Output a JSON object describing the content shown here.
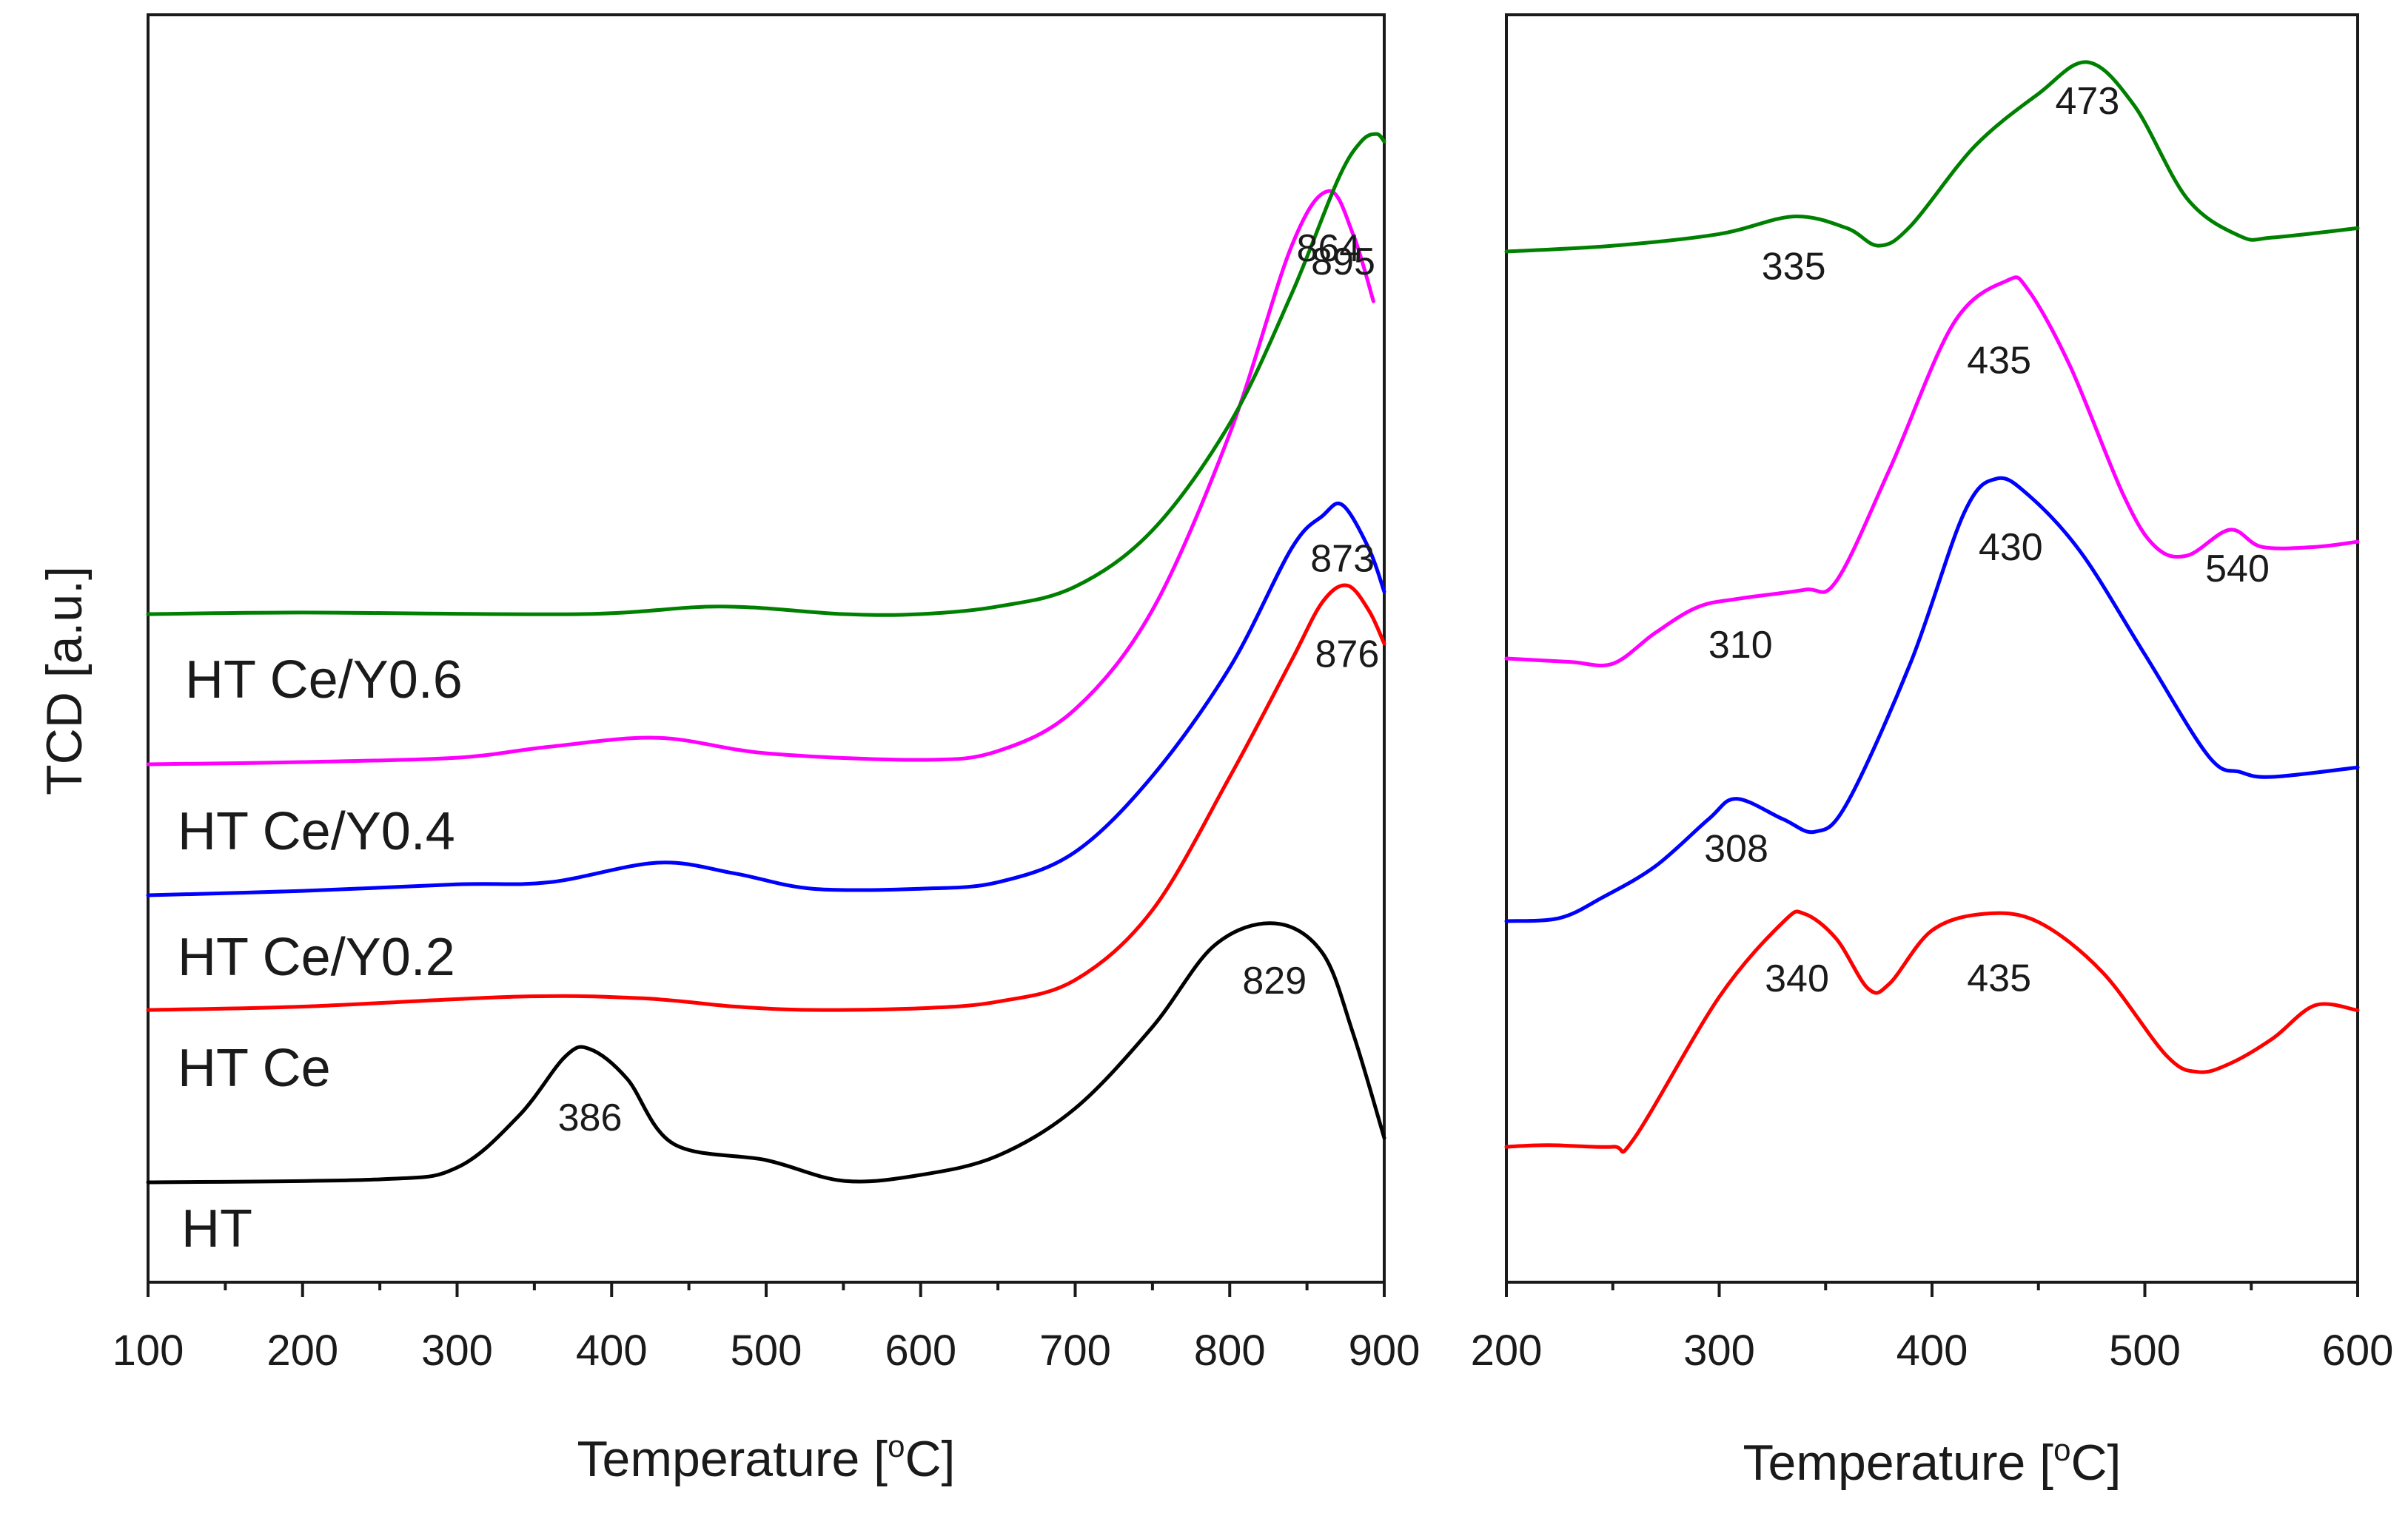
{
  "chart_data": [
    {
      "type": "line",
      "panel": "left",
      "ylabel": "TCD [a.u.]",
      "xlabel": "Temperature [",
      "xlabel_unit": "C]",
      "xlabel_superscript": "o",
      "xlim": [
        100,
        900
      ],
      "xticks": [
        "100",
        "200",
        "300",
        "400",
        "500",
        "600",
        "700",
        "800",
        "900"
      ],
      "y_units": "arbitrary (stacked offsets, not numeric)",
      "series": [
        {
          "name": "HT",
          "color": "#000000",
          "label": "HT",
          "points": [
            [
              100,
              0.0
            ],
            [
              250,
              0.02
            ],
            [
              300,
              0.1
            ],
            [
              340,
              0.45
            ],
            [
              370,
              0.85
            ],
            [
              386,
              0.9
            ],
            [
              410,
              0.7
            ],
            [
              440,
              0.26
            ],
            [
              500,
              0.15
            ],
            [
              550,
              0.01
            ],
            [
              600,
              0.05
            ],
            [
              650,
              0.18
            ],
            [
              700,
              0.5
            ],
            [
              750,
              1.05
            ],
            [
              790,
              1.6
            ],
            [
              829,
              1.75
            ],
            [
              860,
              1.55
            ],
            [
              880,
              1.0
            ],
            [
              900,
              0.3
            ]
          ]
        },
        {
          "name": "HT Ce",
          "color": "#ff0000",
          "label": "HT Ce",
          "points": [
            [
              100,
              0.0
            ],
            [
              200,
              0.02
            ],
            [
              340,
              0.08
            ],
            [
              420,
              0.07
            ],
            [
              480,
              0.02
            ],
            [
              530,
              0.0
            ],
            [
              600,
              0.01
            ],
            [
              650,
              0.05
            ],
            [
              700,
              0.18
            ],
            [
              750,
              0.6
            ],
            [
              800,
              1.4
            ],
            [
              840,
              2.1
            ],
            [
              860,
              2.45
            ],
            [
              876,
              2.55
            ],
            [
              890,
              2.4
            ],
            [
              900,
              2.2
            ]
          ]
        },
        {
          "name": "HT Ce/Y0.2",
          "color": "#0000ff",
          "label": "HT Ce/Y0.2",
          "points": [
            [
              100,
              0.0
            ],
            [
              200,
              0.02
            ],
            [
              300,
              0.05
            ],
            [
              360,
              0.06
            ],
            [
              430,
              0.15
            ],
            [
              480,
              0.1
            ],
            [
              530,
              0.03
            ],
            [
              600,
              0.03
            ],
            [
              650,
              0.06
            ],
            [
              700,
              0.2
            ],
            [
              750,
              0.55
            ],
            [
              800,
              1.05
            ],
            [
              840,
              1.6
            ],
            [
              860,
              1.75
            ],
            [
              873,
              1.8
            ],
            [
              890,
              1.6
            ],
            [
              900,
              1.4
            ]
          ]
        },
        {
          "name": "HT Ce/Y0.4",
          "color": "#ff00ff",
          "label": "HT Ce/Y0.4",
          "points": [
            [
              100,
              0.0
            ],
            [
              200,
              0.01
            ],
            [
              300,
              0.03
            ],
            [
              360,
              0.08
            ],
            [
              430,
              0.12
            ],
            [
              500,
              0.05
            ],
            [
              600,
              0.02
            ],
            [
              650,
              0.06
            ],
            [
              700,
              0.25
            ],
            [
              750,
              0.7
            ],
            [
              800,
              1.5
            ],
            [
              840,
              2.35
            ],
            [
              864,
              2.6
            ],
            [
              880,
              2.4
            ],
            [
              893,
              2.1
            ]
          ]
        },
        {
          "name": "HT Ce/Y0.6",
          "color": "#008000",
          "label": "HT Ce/Y0.6",
          "points": [
            [
              100,
              0.0
            ],
            [
              200,
              0.01
            ],
            [
              380,
              0.0
            ],
            [
              470,
              0.05
            ],
            [
              550,
              0.0
            ],
            [
              600,
              0.0
            ],
            [
              650,
              0.05
            ],
            [
              700,
              0.18
            ],
            [
              750,
              0.55
            ],
            [
              800,
              1.25
            ],
            [
              840,
              2.1
            ],
            [
              870,
              2.85
            ],
            [
              885,
              3.1
            ],
            [
              895,
              3.15
            ],
            [
              900,
              3.1
            ]
          ]
        }
      ],
      "annotations": [
        {
          "series": "HT",
          "x": 386,
          "text": "386"
        },
        {
          "series": "HT",
          "x": 829,
          "text": "829"
        },
        {
          "series": "HT Ce",
          "x": 876,
          "text": "876"
        },
        {
          "series": "HT Ce/Y0.2",
          "x": 873,
          "text": "873"
        },
        {
          "series": "HT Ce/Y0.4",
          "x": 864,
          "text": "864"
        },
        {
          "series": "HT Ce/Y0.6",
          "x": 895,
          "text": "895"
        }
      ]
    },
    {
      "type": "line",
      "panel": "right",
      "xlabel": "Temperature [",
      "xlabel_unit": "C]",
      "xlabel_superscript": "o",
      "xlim": [
        200,
        600
      ],
      "xticks": [
        "200",
        "300",
        "400",
        "500",
        "600"
      ],
      "y_units": "arbitrary (stacked offsets, not numeric)",
      "series": [
        {
          "name": "HT Ce",
          "color": "#ff0000",
          "points": [
            [
              200,
              0.0
            ],
            [
              220,
              0.01
            ],
            [
              250,
              0.0
            ],
            [
              260,
              0.05
            ],
            [
              300,
              0.9
            ],
            [
              330,
              1.35
            ],
            [
              340,
              1.4
            ],
            [
              355,
              1.25
            ],
            [
              370,
              0.95
            ],
            [
              380,
              0.98
            ],
            [
              400,
              1.3
            ],
            [
              425,
              1.4
            ],
            [
              450,
              1.35
            ],
            [
              480,
              1.05
            ],
            [
              510,
              0.55
            ],
            [
              525,
              0.45
            ],
            [
              540,
              0.5
            ],
            [
              560,
              0.65
            ],
            [
              580,
              0.85
            ],
            [
              600,
              0.82
            ]
          ]
        },
        {
          "name": "HT Ce/Y0.2",
          "color": "#0000ff",
          "points": [
            [
              200,
              0.0
            ],
            [
              225,
              0.02
            ],
            [
              245,
              0.15
            ],
            [
              270,
              0.35
            ],
            [
              295,
              0.65
            ],
            [
              308,
              0.78
            ],
            [
              330,
              0.65
            ],
            [
              345,
              0.57
            ],
            [
              360,
              0.75
            ],
            [
              390,
              1.65
            ],
            [
              415,
              2.6
            ],
            [
              430,
              2.82
            ],
            [
              445,
              2.72
            ],
            [
              470,
              2.35
            ],
            [
              500,
              1.7
            ],
            [
              530,
              1.05
            ],
            [
              545,
              0.95
            ],
            [
              560,
              0.92
            ],
            [
              600,
              0.98
            ]
          ]
        },
        {
          "name": "HT Ce/Y0.4",
          "color": "#ff00ff",
          "points": [
            [
              200,
              0.0
            ],
            [
              230,
              -0.02
            ],
            [
              250,
              -0.03
            ],
            [
              270,
              0.15
            ],
            [
              290,
              0.3
            ],
            [
              310,
              0.35
            ],
            [
              340,
              0.4
            ],
            [
              355,
              0.45
            ],
            [
              380,
              1.1
            ],
            [
              410,
              1.95
            ],
            [
              435,
              2.2
            ],
            [
              445,
              2.15
            ],
            [
              465,
              1.7
            ],
            [
              490,
              0.95
            ],
            [
              505,
              0.65
            ],
            [
              520,
              0.6
            ],
            [
              540,
              0.75
            ],
            [
              555,
              0.65
            ],
            [
              580,
              0.65
            ],
            [
              600,
              0.68
            ]
          ]
        },
        {
          "name": "HT Ce/Y0.6",
          "color": "#008000",
          "points": [
            [
              200,
              0.0
            ],
            [
              250,
              0.05
            ],
            [
              300,
              0.15
            ],
            [
              335,
              0.3
            ],
            [
              360,
              0.2
            ],
            [
              375,
              0.05
            ],
            [
              390,
              0.22
            ],
            [
              420,
              0.9
            ],
            [
              450,
              1.35
            ],
            [
              473,
              1.62
            ],
            [
              495,
              1.25
            ],
            [
              520,
              0.45
            ],
            [
              545,
              0.13
            ],
            [
              560,
              0.12
            ],
            [
              600,
              0.2
            ]
          ]
        }
      ],
      "annotations": [
        {
          "series": "HT Ce",
          "x": 340,
          "text": "340"
        },
        {
          "series": "HT Ce",
          "x": 435,
          "text": "435"
        },
        {
          "series": "HT Ce/Y0.2",
          "x": 308,
          "text": "308"
        },
        {
          "series": "HT Ce/Y0.2",
          "x": 430,
          "text": "430"
        },
        {
          "series": "HT Ce/Y0.4",
          "x": 310,
          "text": "310"
        },
        {
          "series": "HT Ce/Y0.4",
          "x": 435,
          "text": "435"
        },
        {
          "series": "HT Ce/Y0.4",
          "x": 540,
          "text": "540"
        },
        {
          "series": "HT Ce/Y0.6",
          "x": 335,
          "text": "335"
        },
        {
          "series": "HT Ce/Y0.6",
          "x": 473,
          "text": "473"
        }
      ]
    }
  ]
}
